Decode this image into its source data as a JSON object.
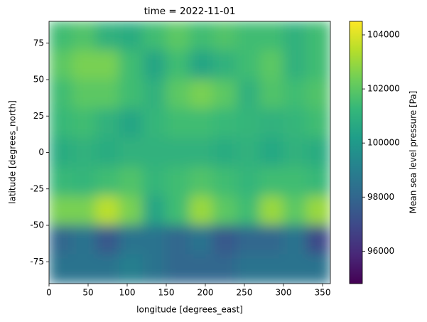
{
  "chart_data": {
    "type": "heatmap",
    "title": "time = 2022-11-01",
    "x_label": "longitude [degrees_east]",
    "y_label": "latitude [degrees_north]",
    "colorbar_label": "Mean sea level pressure [Pa]",
    "colormap": "viridis",
    "x": [
      15,
      45,
      75,
      105,
      135,
      165,
      195,
      225,
      255,
      285,
      315,
      345
    ],
    "y": [
      80,
      60,
      40,
      20,
      0,
      -20,
      -40,
      -60,
      -80
    ],
    "values": [
      [
        101500,
        101800,
        101000,
        100800,
        101500,
        102000,
        101500,
        101800,
        101500,
        101500,
        101000,
        101500
      ],
      [
        102000,
        102500,
        102500,
        101500,
        100500,
        101500,
        100500,
        101000,
        101500,
        102000,
        101000,
        101500
      ],
      [
        101500,
        102000,
        102000,
        101500,
        101000,
        102000,
        102500,
        102000,
        101000,
        101800,
        101500,
        101800
      ],
      [
        101300,
        101500,
        101000,
        100500,
        101200,
        101500,
        101500,
        101300,
        101200,
        101000,
        101200,
        101500
      ],
      [
        100800,
        101000,
        100800,
        101000,
        101000,
        101000,
        101000,
        100800,
        101000,
        100600,
        101000,
        100800
      ],
      [
        101300,
        101200,
        101500,
        101800,
        101200,
        101500,
        101800,
        101500,
        101200,
        101500,
        101500,
        101300
      ],
      [
        102500,
        102500,
        103500,
        102500,
        100500,
        101500,
        103000,
        102000,
        101500,
        103000,
        102000,
        103000
      ],
      [
        98000,
        98500,
        97500,
        98500,
        98500,
        98000,
        98500,
        97500,
        98000,
        98000,
        98500,
        97000
      ],
      [
        98500,
        98500,
        98500,
        99000,
        98500,
        98000,
        98000,
        98000,
        98500,
        98500,
        98500,
        98500
      ]
    ],
    "xlim": [
      0,
      360
    ],
    "xticks": [
      0,
      50,
      100,
      150,
      200,
      250,
      300,
      350
    ],
    "ylim": [
      -90,
      90
    ],
    "yticks": [
      -75,
      -50,
      -25,
      0,
      25,
      50,
      75
    ],
    "clim": [
      94800,
      104500
    ],
    "cticks": [
      96000,
      98000,
      100000,
      102000,
      104000
    ]
  }
}
